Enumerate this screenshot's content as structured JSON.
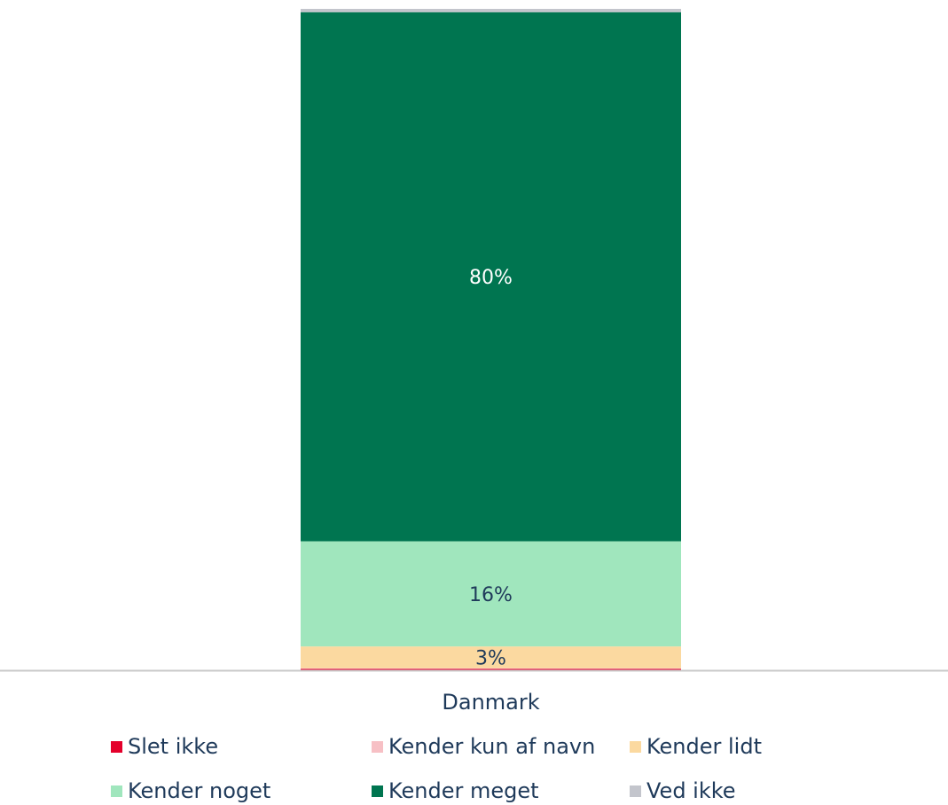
{
  "chart_data": {
    "type": "bar",
    "stacked": true,
    "categories": [
      "Danmark"
    ],
    "ylim": [
      0,
      100
    ],
    "series": [
      {
        "name": "Slet ikke",
        "values": [
          0.2
        ],
        "color": "#e4002b",
        "label": ""
      },
      {
        "name": "Kender kun af navn",
        "values": [
          0.1
        ],
        "color": "#f7c0c5",
        "label": ""
      },
      {
        "name": "Kender lidt",
        "values": [
          3.3
        ],
        "color": "#fbd9a0",
        "label": "3%"
      },
      {
        "name": "Kender noget",
        "values": [
          15.9
        ],
        "color": "#a0e6bd",
        "label": "16%"
      },
      {
        "name": "Kender meget",
        "values": [
          80.0
        ],
        "color": "#007550",
        "label": "80%"
      },
      {
        "name": "Ved ikke",
        "values": [
          0.5
        ],
        "color": "#c3c5cc",
        "label": ""
      }
    ],
    "label_colors": {
      "dark": "#1f3a5a",
      "light": "#ffffff"
    },
    "legend_position": "bottom",
    "axis_color": "#c9c9c9"
  }
}
